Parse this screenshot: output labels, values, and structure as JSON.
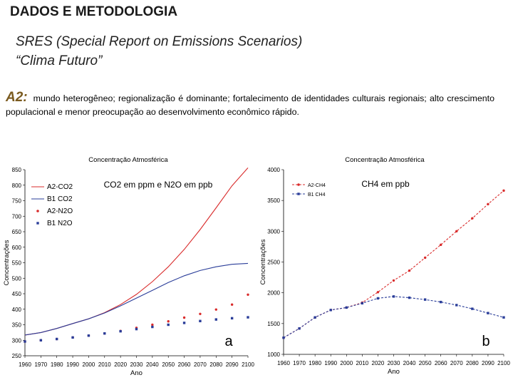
{
  "header": {
    "title": "DADOS E METODOLOGIA",
    "subtitle_line1": "SRES (Special Report on Emissions Scenarios)",
    "subtitle_line2": "“Clima Futuro”",
    "scenario_tag": "A2:",
    "scenario_text": "mundo heterogêneo; regionalização é dominante; fortalecimento de identidades culturais regionais; alto crescimento populacional e menor preocupação ao desenvolvimento econômico rápido."
  },
  "colors": {
    "a2": "#d92b2b",
    "b1": "#2a3d99"
  },
  "chart_data": [
    {
      "type": "line",
      "title": "Concentração Atmosférica",
      "note": "CO2 em ppm e N2O em ppb",
      "panel_label": "a",
      "xlabel": "Ano",
      "ylabel": "Concentrações",
      "xlim": [
        1960,
        2100
      ],
      "ylim": [
        250,
        850
      ],
      "x_ticks": [
        "1960",
        "1970",
        "1980",
        "1990",
        "2000",
        "2010",
        "2020",
        "2030",
        "2040",
        "2050",
        "2060",
        "2070",
        "2080",
        "2090",
        "2100"
      ],
      "y_ticks": [
        "250",
        "300",
        "350",
        "400",
        "450",
        "500",
        "550",
        "600",
        "650",
        "700",
        "750",
        "800",
        "850"
      ],
      "legend_position": "top-left",
      "series": [
        {
          "name": "A2-CO2",
          "style": "a2-line",
          "x": [
            1960,
            1970,
            1980,
            1990,
            2000,
            2010,
            2020,
            2030,
            2040,
            2050,
            2060,
            2070,
            2080,
            2090,
            2100
          ],
          "y": [
            317,
            325,
            338,
            354,
            369,
            389,
            415,
            448,
            489,
            537,
            593,
            657,
            727,
            798,
            856
          ]
        },
        {
          "name": "B1 CO2",
          "style": "b1-line",
          "x": [
            1960,
            1970,
            1980,
            1990,
            2000,
            2010,
            2020,
            2030,
            2040,
            2050,
            2060,
            2070,
            2080,
            2090,
            2100
          ],
          "y": [
            317,
            325,
            338,
            354,
            369,
            388,
            411,
            436,
            461,
            486,
            508,
            525,
            537,
            545,
            548
          ]
        },
        {
          "name": "A2-N2O",
          "style": "a2-markers",
          "x": [
            1960,
            1970,
            1980,
            1990,
            2000,
            2010,
            2020,
            2030,
            2040,
            2050,
            2060,
            2070,
            2080,
            2090,
            2100
          ],
          "y": [
            296,
            300,
            304,
            309,
            315,
            322,
            330,
            340,
            350,
            361,
            373,
            385,
            399,
            415,
            447
          ]
        },
        {
          "name": "B1 N2O",
          "style": "b1-markers",
          "x": [
            1960,
            1970,
            1980,
            1990,
            2000,
            2010,
            2020,
            2030,
            2040,
            2050,
            2060,
            2070,
            2080,
            2090,
            2100
          ],
          "y": [
            296,
            300,
            304,
            309,
            315,
            322,
            329,
            336,
            343,
            350,
            356,
            362,
            367,
            371,
            374
          ]
        }
      ]
    },
    {
      "type": "line",
      "title": "Concentração Atmosférica",
      "note": "CH4 em ppb",
      "panel_label": "b",
      "xlabel": "Ano",
      "ylabel": "Concentrações",
      "xlim": [
        1960,
        2100
      ],
      "ylim": [
        1000,
        4000
      ],
      "x_ticks": [
        "1960",
        "1970",
        "1980",
        "1990",
        "2000",
        "2010",
        "2020",
        "2030",
        "2040",
        "2050",
        "2060",
        "2070",
        "2080",
        "2090",
        "2100"
      ],
      "y_ticks": [
        "1000",
        "1500",
        "2000",
        "2500",
        "3000",
        "3500",
        "4000"
      ],
      "legend_position": "top-left",
      "series": [
        {
          "name": "A2-CH4",
          "style": "a2-markers-line",
          "x": [
            1960,
            1970,
            1980,
            1990,
            2000,
            2010,
            2020,
            2030,
            2040,
            2050,
            2060,
            2070,
            2080,
            2090,
            2100
          ],
          "y": [
            1270,
            1420,
            1600,
            1720,
            1760,
            1840,
            2010,
            2200,
            2360,
            2570,
            2780,
            3000,
            3210,
            3440,
            3660
          ]
        },
        {
          "name": "B1 CH4",
          "style": "b1-markers-line",
          "x": [
            1960,
            1970,
            1980,
            1990,
            2000,
            2010,
            2020,
            2030,
            2040,
            2050,
            2060,
            2070,
            2080,
            2090,
            2100
          ],
          "y": [
            1270,
            1420,
            1600,
            1720,
            1760,
            1830,
            1910,
            1940,
            1920,
            1890,
            1850,
            1800,
            1740,
            1670,
            1600
          ]
        }
      ]
    }
  ]
}
